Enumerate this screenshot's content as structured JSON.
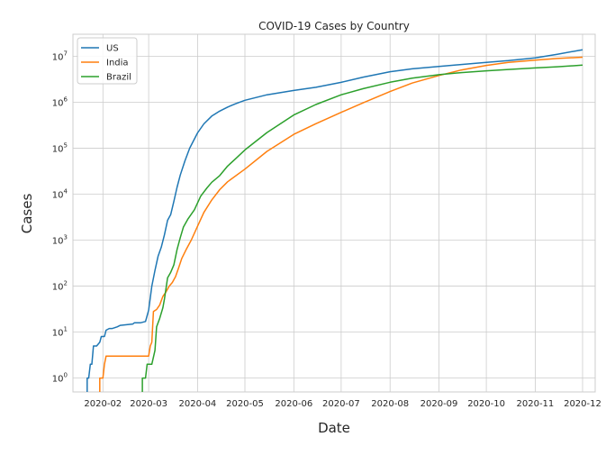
{
  "chart_data": {
    "type": "line",
    "title": "COVID-19 Cases by Country",
    "xlabel": "Date",
    "ylabel": "Cases",
    "yscale": "log",
    "grid": true,
    "legend_position": "top-left",
    "xlim": [
      "2020-01-13",
      "2020-12-09"
    ],
    "ylim": [
      0.5,
      30000000
    ],
    "x_ticks": [
      "2020-02-01",
      "2020-03-01",
      "2020-04-01",
      "2020-05-01",
      "2020-06-01",
      "2020-07-01",
      "2020-08-01",
      "2020-09-01",
      "2020-10-01",
      "2020-11-01",
      "2020-12-01"
    ],
    "x_tick_labels": [
      "2020-02",
      "2020-03",
      "2020-04",
      "2020-05",
      "2020-06",
      "2020-07",
      "2020-08",
      "2020-09",
      "2020-10",
      "2020-11",
      "2020-12"
    ],
    "y_ticks": [
      1,
      10,
      100,
      1000,
      10000,
      100000,
      1000000,
      10000000
    ],
    "y_tick_labels": [
      {
        "base": "10",
        "exp": "0"
      },
      {
        "base": "10",
        "exp": "1"
      },
      {
        "base": "10",
        "exp": "2"
      },
      {
        "base": "10",
        "exp": "3"
      },
      {
        "base": "10",
        "exp": "4"
      },
      {
        "base": "10",
        "exp": "5"
      },
      {
        "base": "10",
        "exp": "6"
      },
      {
        "base": "10",
        "exp": "7"
      }
    ],
    "series": [
      {
        "name": "US",
        "color": "#1f77b4",
        "points": [
          [
            "2020-01-22",
            1
          ],
          [
            "2020-01-23",
            1
          ],
          [
            "2020-01-24",
            2
          ],
          [
            "2020-01-25",
            2
          ],
          [
            "2020-01-26",
            5
          ],
          [
            "2020-01-28",
            5
          ],
          [
            "2020-01-30",
            6
          ],
          [
            "2020-01-31",
            8
          ],
          [
            "2020-02-02",
            8
          ],
          [
            "2020-02-03",
            11
          ],
          [
            "2020-02-05",
            12
          ],
          [
            "2020-02-07",
            12
          ],
          [
            "2020-02-10",
            13
          ],
          [
            "2020-02-12",
            14
          ],
          [
            "2020-02-20",
            15
          ],
          [
            "2020-02-21",
            16
          ],
          [
            "2020-02-25",
            16
          ],
          [
            "2020-02-28",
            17
          ],
          [
            "2020-03-01",
            30
          ],
          [
            "2020-03-03",
            100
          ],
          [
            "2020-03-05",
            220
          ],
          [
            "2020-03-07",
            450
          ],
          [
            "2020-03-09",
            700
          ],
          [
            "2020-03-11",
            1300
          ],
          [
            "2020-03-13",
            2700
          ],
          [
            "2020-03-15",
            3600
          ],
          [
            "2020-03-17",
            7000
          ],
          [
            "2020-03-19",
            14000
          ],
          [
            "2020-03-21",
            26000
          ],
          [
            "2020-03-24",
            53000
          ],
          [
            "2020-03-27",
            100000
          ],
          [
            "2020-04-01",
            215000
          ],
          [
            "2020-04-05",
            337000
          ],
          [
            "2020-04-10",
            500000
          ],
          [
            "2020-04-15",
            640000
          ],
          [
            "2020-04-20",
            780000
          ],
          [
            "2020-04-25",
            920000
          ],
          [
            "2020-05-01",
            1100000
          ],
          [
            "2020-05-15",
            1450000
          ],
          [
            "2020-06-01",
            1800000
          ],
          [
            "2020-06-15",
            2100000
          ],
          [
            "2020-07-01",
            2700000
          ],
          [
            "2020-07-15",
            3500000
          ],
          [
            "2020-08-01",
            4600000
          ],
          [
            "2020-08-15",
            5300000
          ],
          [
            "2020-09-01",
            6000000
          ],
          [
            "2020-09-15",
            6600000
          ],
          [
            "2020-10-01",
            7300000
          ],
          [
            "2020-10-15",
            8000000
          ],
          [
            "2020-11-01",
            9200000
          ],
          [
            "2020-11-15",
            11000000
          ],
          [
            "2020-12-01",
            13800000
          ]
        ]
      },
      {
        "name": "India",
        "color": "#ff7f0e",
        "points": [
          [
            "2020-01-30",
            1
          ],
          [
            "2020-02-01",
            1
          ],
          [
            "2020-02-02",
            2
          ],
          [
            "2020-02-03",
            3
          ],
          [
            "2020-03-01",
            3
          ],
          [
            "2020-03-02",
            5
          ],
          [
            "2020-03-03",
            6
          ],
          [
            "2020-03-04",
            28
          ],
          [
            "2020-03-06",
            31
          ],
          [
            "2020-03-08",
            39
          ],
          [
            "2020-03-10",
            60
          ],
          [
            "2020-03-12",
            75
          ],
          [
            "2020-03-14",
            100
          ],
          [
            "2020-03-16",
            120
          ],
          [
            "2020-03-18",
            160
          ],
          [
            "2020-03-20",
            250
          ],
          [
            "2020-03-22",
            400
          ],
          [
            "2020-03-25",
            650
          ],
          [
            "2020-03-28",
            1000
          ],
          [
            "2020-04-01",
            2000
          ],
          [
            "2020-04-05",
            4000
          ],
          [
            "2020-04-10",
            7500
          ],
          [
            "2020-04-15",
            12500
          ],
          [
            "2020-04-20",
            18500
          ],
          [
            "2020-05-01",
            35000
          ],
          [
            "2020-05-15",
            85000
          ],
          [
            "2020-06-01",
            200000
          ],
          [
            "2020-06-15",
            340000
          ],
          [
            "2020-07-01",
            600000
          ],
          [
            "2020-07-15",
            970000
          ],
          [
            "2020-08-01",
            1700000
          ],
          [
            "2020-08-15",
            2600000
          ],
          [
            "2020-09-01",
            3800000
          ],
          [
            "2020-09-15",
            5000000
          ],
          [
            "2020-10-01",
            6300000
          ],
          [
            "2020-10-15",
            7300000
          ],
          [
            "2020-11-01",
            8200000
          ],
          [
            "2020-11-15",
            8900000
          ],
          [
            "2020-12-01",
            9500000
          ]
        ]
      },
      {
        "name": "Brazil",
        "color": "#2ca02c",
        "points": [
          [
            "2020-02-26",
            1
          ],
          [
            "2020-02-28",
            1
          ],
          [
            "2020-02-29",
            2
          ],
          [
            "2020-03-03",
            2
          ],
          [
            "2020-03-05",
            4
          ],
          [
            "2020-03-06",
            13
          ],
          [
            "2020-03-08",
            20
          ],
          [
            "2020-03-10",
            34
          ],
          [
            "2020-03-11",
            52
          ],
          [
            "2020-03-13",
            151
          ],
          [
            "2020-03-15",
            200
          ],
          [
            "2020-03-17",
            291
          ],
          [
            "2020-03-19",
            621
          ],
          [
            "2020-03-21",
            1128
          ],
          [
            "2020-03-23",
            1924
          ],
          [
            "2020-03-26",
            2915
          ],
          [
            "2020-03-30",
            4579
          ],
          [
            "2020-04-03",
            9056
          ],
          [
            "2020-04-07",
            13717
          ],
          [
            "2020-04-10",
            18092
          ],
          [
            "2020-04-15",
            25262
          ],
          [
            "2020-04-20",
            40581
          ],
          [
            "2020-04-25",
            58509
          ],
          [
            "2020-05-01",
            91589
          ],
          [
            "2020-05-15",
            218223
          ],
          [
            "2020-06-01",
            526447
          ],
          [
            "2020-06-15",
            888271
          ],
          [
            "2020-07-01",
            1448753
          ],
          [
            "2020-07-15",
            1966748
          ],
          [
            "2020-08-01",
            2707877
          ],
          [
            "2020-08-15",
            3317096
          ],
          [
            "2020-09-01",
            3950931
          ],
          [
            "2020-09-15",
            4382263
          ],
          [
            "2020-10-01",
            4810935
          ],
          [
            "2020-10-15",
            5140863
          ],
          [
            "2020-11-01",
            5545705
          ],
          [
            "2020-11-15",
            5876464
          ],
          [
            "2020-12-01",
            6386787
          ]
        ]
      }
    ]
  }
}
